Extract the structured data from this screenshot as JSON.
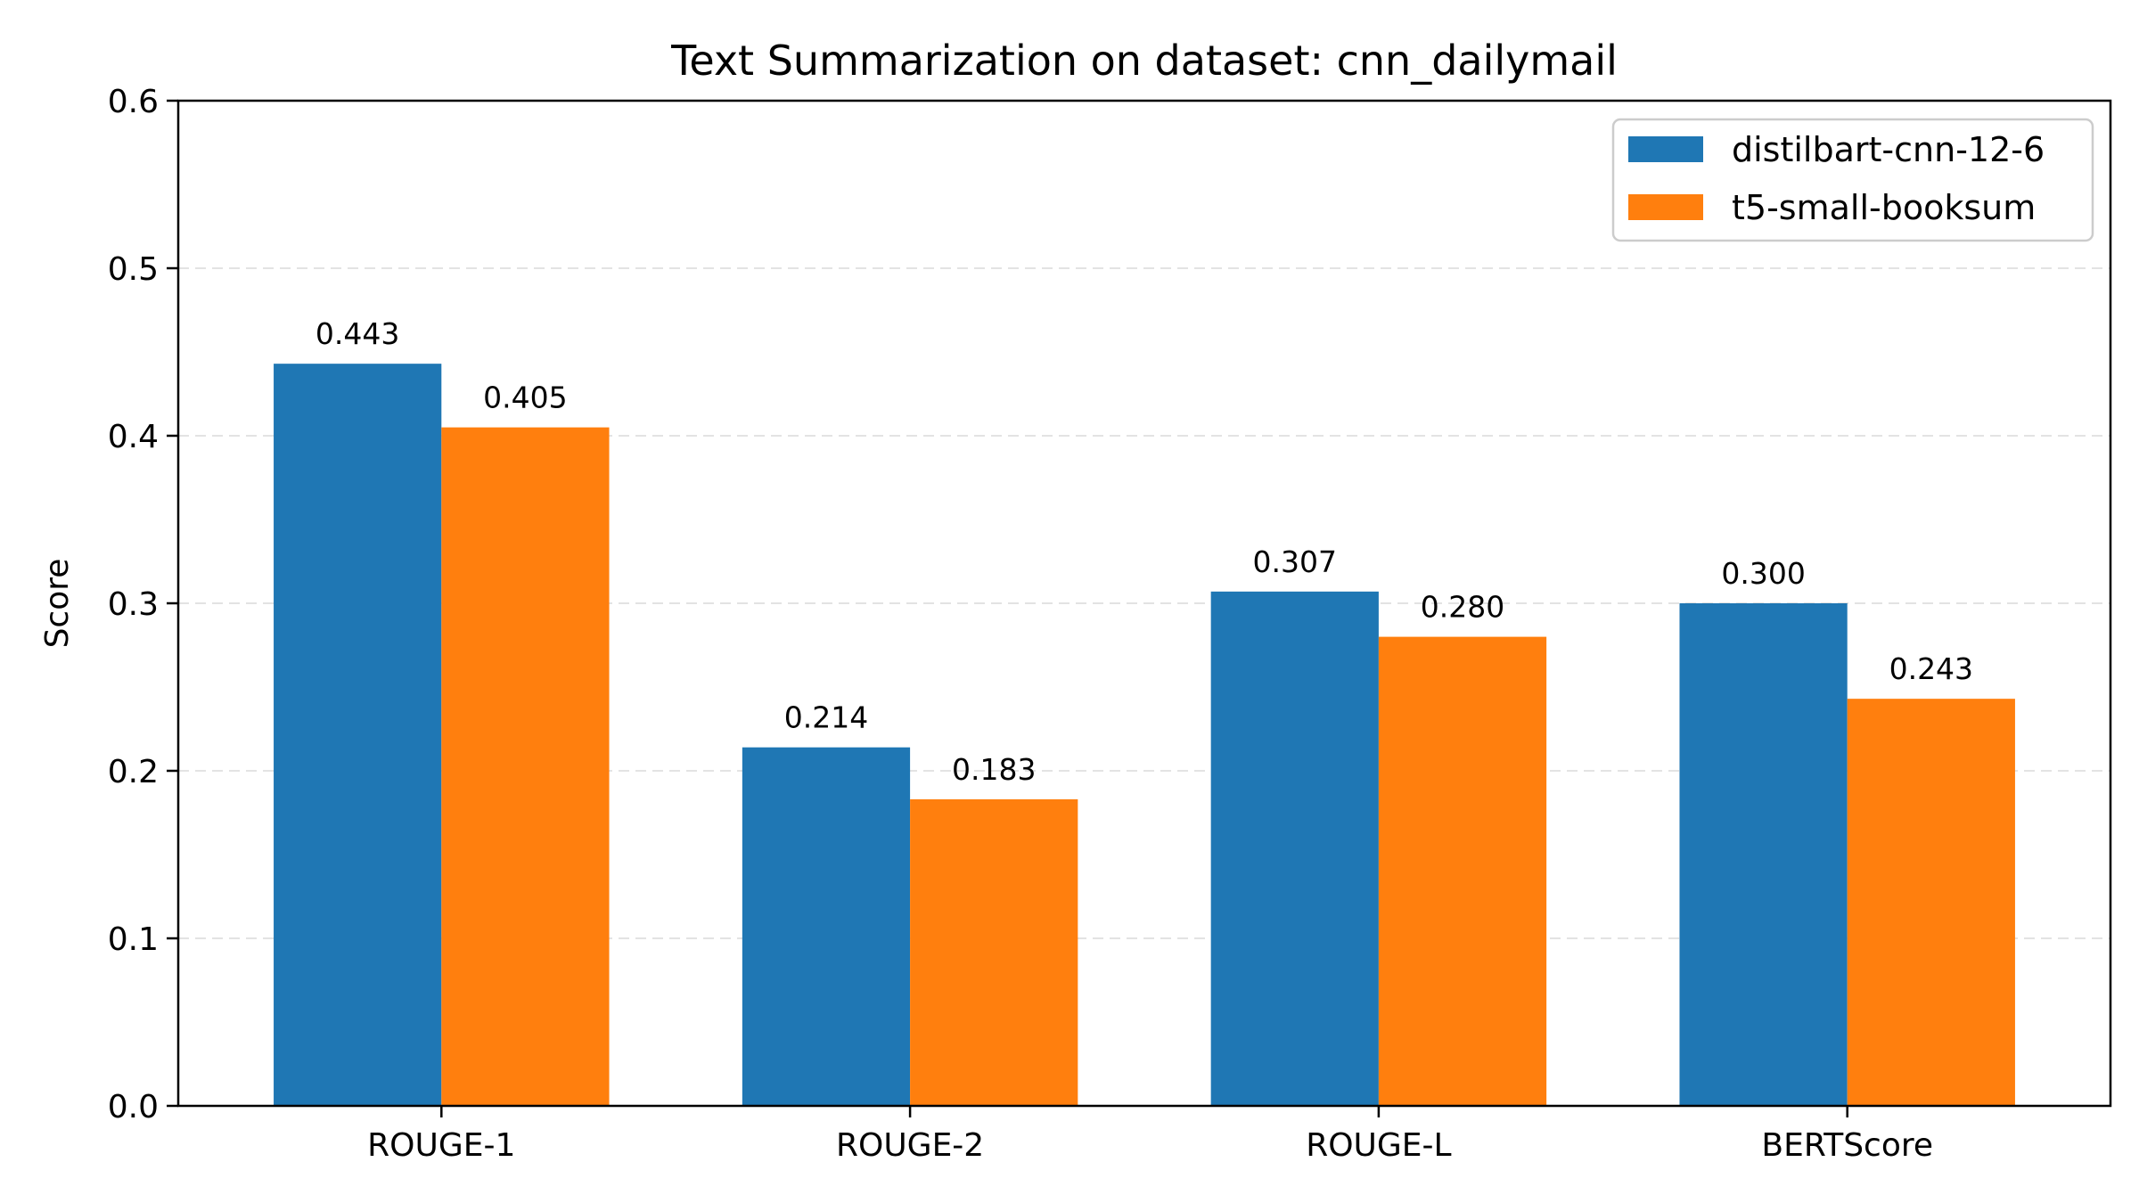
{
  "chart_data": {
    "type": "bar",
    "title": "Text Summarization on dataset: cnn_dailymail",
    "xlabel": "",
    "ylabel": "Score",
    "categories": [
      "ROUGE-1",
      "ROUGE-2",
      "ROUGE-L",
      "BERTScore"
    ],
    "series": [
      {
        "name": "distilbart-cnn-12-6",
        "color": "#1f77b4",
        "values": [
          0.443,
          0.214,
          0.307,
          0.3
        ],
        "labels": [
          "0.443",
          "0.214",
          "0.307",
          "0.300"
        ]
      },
      {
        "name": "t5-small-booksum",
        "color": "#ff7f0e",
        "values": [
          0.405,
          0.183,
          0.28,
          0.243
        ],
        "labels": [
          "0.405",
          "0.183",
          "0.280",
          "0.243"
        ]
      }
    ],
    "ylim": [
      0,
      0.6
    ],
    "yticks": [
      0.0,
      0.1,
      0.2,
      0.3,
      0.4,
      0.5,
      0.6
    ],
    "ytick_labels": [
      "0.0",
      "0.1",
      "0.2",
      "0.3",
      "0.4",
      "0.5",
      "0.6"
    ],
    "grid": "y-dashed",
    "legend_position": "top-right"
  }
}
